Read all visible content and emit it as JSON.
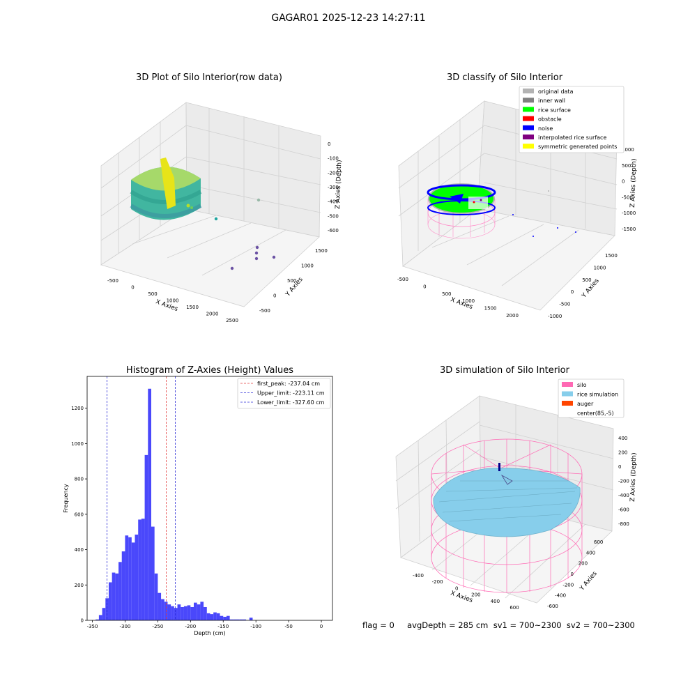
{
  "suptitle": "GAGAR01 2025-12-23 14:27:11",
  "footer": "flag = 0     avgDepth = 285 cm  sv1 = 700~2300  sv2 = 700~2300",
  "colors": {
    "hist_bar": "#4a48fb",
    "peak": "#e33b3b",
    "limit": "#2b2bd6",
    "silo": "#ff69b4",
    "rice_sim": "#87ceeb",
    "auger": "#ff4500"
  },
  "panels": {
    "raw": {
      "title": "3D Plot of Silo Interior(row data)",
      "xlabel": "X Axies",
      "ylabel": "Y Axies",
      "zlabel": "Z Axies (Depth)",
      "xticks": [
        "-500",
        "0",
        "500",
        "1000",
        "1500",
        "2000",
        "2500"
      ],
      "yticks": [
        "-500",
        "0",
        "500",
        "1000",
        "1500"
      ],
      "zticks": [
        "0",
        "-100",
        "-200",
        "-300",
        "-400",
        "-500",
        "-600"
      ]
    },
    "classify": {
      "title": "3D classify of Silo Interior",
      "xlabel": "X Axies",
      "ylabel": "Y Axies",
      "zlabel": "Z Axies (Depth)",
      "xticks": [
        "-500",
        "0",
        "500",
        "1000",
        "1500",
        "2000"
      ],
      "yticks": [
        "-1000",
        "-500",
        "0",
        "500",
        "1000",
        "1500"
      ],
      "zticks": [
        "1000",
        "500",
        "0",
        "-500",
        "-1000",
        "-1500"
      ],
      "legend": [
        {
          "label": "original data",
          "color": "#b3b3b3"
        },
        {
          "label": "inner wall",
          "color": "#808080"
        },
        {
          "label": "rice surface",
          "color": "#00ff00"
        },
        {
          "label": "obstacle",
          "color": "#ff0000"
        },
        {
          "label": "noise",
          "color": "#0000ff"
        },
        {
          "label": "interpolated rice surface",
          "color": "#800080"
        },
        {
          "label": "symmetric generated points",
          "color": "#ffff00"
        }
      ]
    },
    "simulation": {
      "title": "3D simulation of Silo Interior",
      "xlabel": "X Axies",
      "ylabel": "Y Axies",
      "zlabel": "Z Axies (Depth)",
      "xticks": [
        "-400",
        "-200",
        "0",
        "200",
        "400",
        "600"
      ],
      "yticks": [
        "-600",
        "-400",
        "-200",
        "0",
        "200",
        "400",
        "600"
      ],
      "zticks": [
        "400",
        "200",
        "0",
        "-200",
        "-400",
        "-600",
        "-800"
      ],
      "legend": [
        {
          "label": "silo",
          "color": "#ff69b4"
        },
        {
          "label": "rice simulation",
          "color": "#87ceeb"
        },
        {
          "label": "auger",
          "color": "#ff4500"
        },
        {
          "label": "center(85,-5)",
          "color": ""
        }
      ]
    }
  },
  "chart_data": [
    {
      "type": "bar",
      "title": "Histogram of Z-Axies (Height) Values",
      "xlabel": "Depth (cm)",
      "ylabel": "Frequency",
      "xlim": [
        -358,
        17
      ],
      "ylim": [
        0,
        1380
      ],
      "xticks": [
        -350,
        -300,
        -250,
        -200,
        -150,
        -100,
        -50,
        0
      ],
      "yticks": [
        0,
        200,
        400,
        600,
        800,
        1000,
        1200
      ],
      "bin_start": -345,
      "bin_width": 5,
      "values": [
        5,
        30,
        70,
        125,
        215,
        270,
        265,
        330,
        390,
        480,
        470,
        440,
        485,
        570,
        575,
        935,
        1310,
        530,
        265,
        155,
        120,
        105,
        90,
        80,
        70,
        90,
        75,
        80,
        85,
        75,
        100,
        90,
        105,
        75,
        40,
        35,
        45,
        40,
        25,
        20,
        25,
        5,
        5,
        5,
        5,
        5,
        0,
        15
      ],
      "vlines": [
        {
          "name": "first_peak: -237.04 cm",
          "x": -237.04,
          "style": "peak"
        },
        {
          "name": "Upper_limit: -223.11 cm",
          "x": -223.11,
          "style": "limit"
        },
        {
          "name": "Lower_limit: -327.60 cm",
          "x": -327.6,
          "style": "limit"
        }
      ],
      "legend_position": "top-right"
    }
  ]
}
